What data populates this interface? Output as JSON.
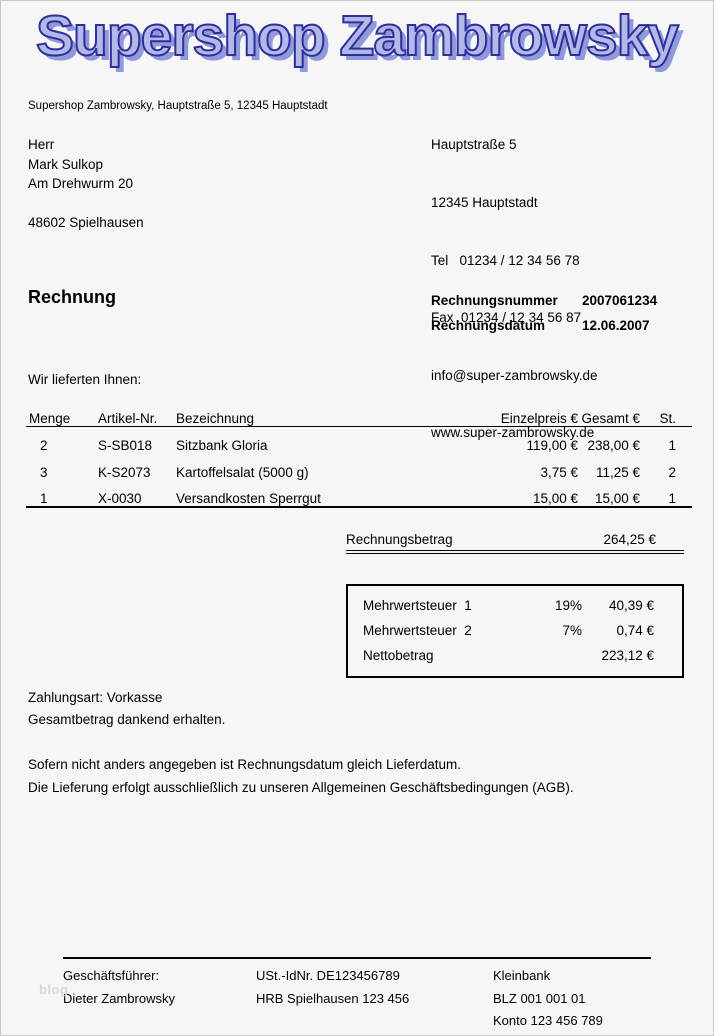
{
  "logo": {
    "text": "Supershop Zambrowsky"
  },
  "sender_line": "Supershop Zambrowsky, Hauptstraße 5, 12345 Hauptstadt",
  "recipient": {
    "salutation": "Herr",
    "name": "Mark Sulkop",
    "street": "Am Drehwurm 20",
    "city": "48602 Spielhausen"
  },
  "company_contact": {
    "street": "Hauptstraße 5",
    "city": "12345 Hauptstadt",
    "tel_line": "Tel   01234 / 12 34 56 78",
    "fax_line": "Fax  01234 / 12 34 56 87",
    "email": "info@super-zambrowsky.de",
    "website": "www.super-zambrowsky.de"
  },
  "invoice": {
    "title": "Rechnung",
    "number_label": "Rechnungsnummer",
    "number": "2007061234",
    "date_label": "Rechnungsdatum",
    "date": "12.06.2007",
    "intro": "Wir lieferten Ihnen:"
  },
  "items_table": {
    "headers": {
      "menge": "Menge",
      "artikel": "Artikel-Nr.",
      "bezeichnung": "Bezeichnung",
      "einzelpreis": "Einzelpreis €",
      "gesamt": "Gesamt €",
      "st": "St."
    },
    "rows": [
      {
        "menge": "2",
        "artikel": "S-SB018",
        "bezeichnung": "Sitzbank Gloria",
        "einzelpreis": "119,00 €",
        "gesamt": "238,00 €",
        "st": "1"
      },
      {
        "menge": "3",
        "artikel": "K-S2073",
        "bezeichnung": "Kartoffelsalat (5000 g)",
        "einzelpreis": "3,75 €",
        "gesamt": "11,25 €",
        "st": "2"
      },
      {
        "menge": "1",
        "artikel": "X-0030",
        "bezeichnung": "Versandkosten Sperrgut",
        "einzelpreis": "15,00 €",
        "gesamt": "15,00 €",
        "st": "1"
      }
    ]
  },
  "totals": {
    "betrag_label": "Rechnungsbetrag",
    "betrag_value": "264,25 €",
    "tax_rows": [
      {
        "label": "Mehrwertsteuer  1",
        "rate": "19%",
        "value": "40,39 €"
      },
      {
        "label": "Mehrwertsteuer  2",
        "rate": "7%",
        "value": "0,74 €"
      },
      {
        "label": "Nettobetrag",
        "rate": "",
        "value": "223,12 €"
      }
    ]
  },
  "notes_payment": [
    "Zahlungsart: Vorkasse",
    "Gesamtbetrag dankend erhalten."
  ],
  "notes_terms": [
    "Sofern nicht anders angegeben ist Rechnungsdatum gleich Lieferdatum.",
    "Die Lieferung erfolgt ausschließlich zu unseren Allgemeinen Geschäftsbedingungen (AGB)."
  ],
  "footer": {
    "col1": {
      "line1": "Geschäftsführer:",
      "line2": "Dieter Zambrowsky"
    },
    "col2": {
      "line1": "USt.-IdNr. DE123456789",
      "line2": "HRB Spielhausen 123 456"
    },
    "col3": {
      "line1": "Kleinbank",
      "line2": "BLZ 001 001 01",
      "line3": "Konto 123 456 789"
    }
  },
  "watermark": "blog",
  "colors": {
    "logo_fill": "#b2b9e9",
    "logo_outline": "#2f2f99",
    "logo_shadow": "#9099dc",
    "page_background": "#f6f6f6",
    "rule_color": "#000000"
  }
}
